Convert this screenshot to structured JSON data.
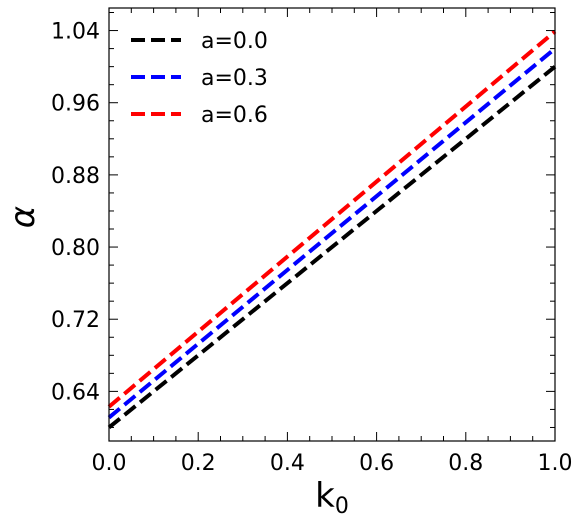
{
  "chart_data": {
    "type": "line",
    "xlabel": "k",
    "xlabel_sub": "0",
    "ylabel": "α",
    "xlim": [
      0.0,
      1.0
    ],
    "ylim": [
      0.585,
      1.065
    ],
    "xticks": [
      0.0,
      0.2,
      0.4,
      0.6,
      0.8,
      1.0
    ],
    "xtick_labels": [
      "0.0",
      "0.2",
      "0.4",
      "0.6",
      "0.8",
      "1.0"
    ],
    "yticks": [
      0.64,
      0.72,
      0.8,
      0.88,
      0.96,
      1.04
    ],
    "ytick_labels": [
      "0.64",
      "0.72",
      "0.80",
      "0.88",
      "0.96",
      "1.04"
    ],
    "legend_position": "top-left",
    "grid": false,
    "series": [
      {
        "name": "a=0.0",
        "color": "#000000",
        "x": [
          0.0,
          1.0
        ],
        "values": [
          0.6,
          1.0
        ]
      },
      {
        "name": "a=0.3",
        "color": "#0000ff",
        "x": [
          0.0,
          1.0
        ],
        "values": [
          0.611,
          1.02
        ]
      },
      {
        "name": "a=0.6",
        "color": "#ff0000",
        "x": [
          0.0,
          1.0
        ],
        "values": [
          0.623,
          1.039
        ]
      }
    ]
  }
}
